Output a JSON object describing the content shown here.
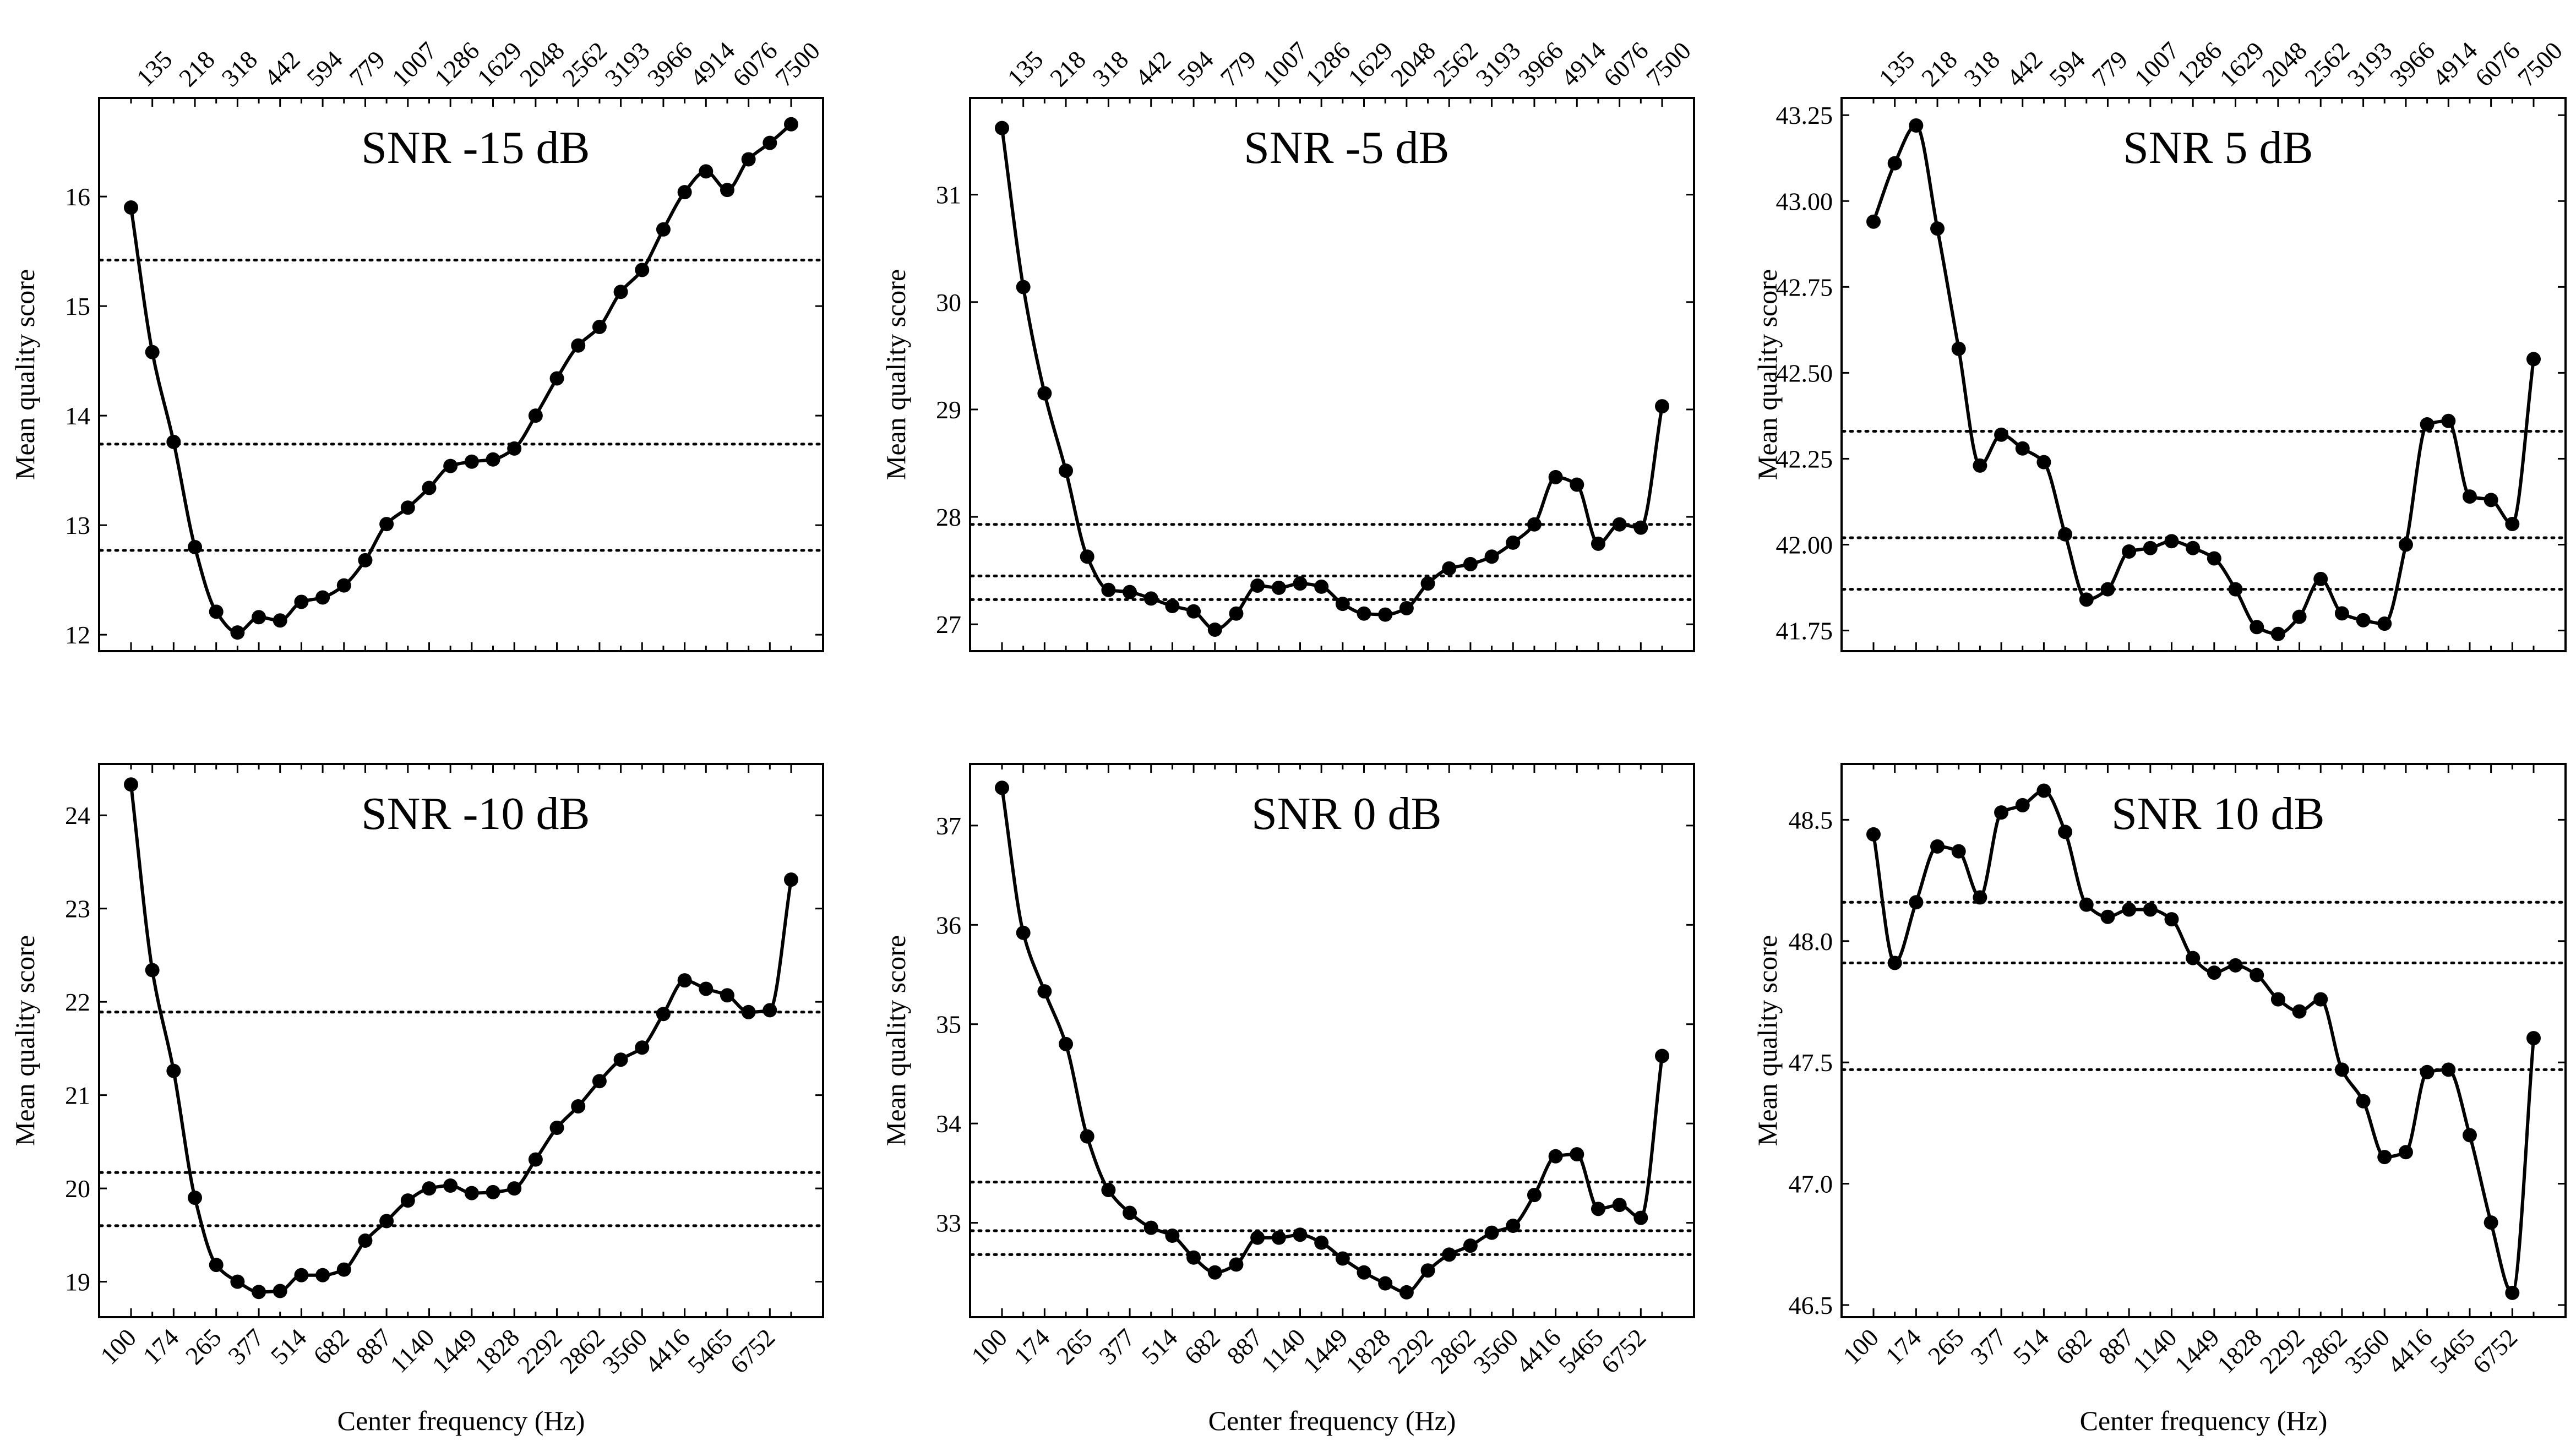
{
  "chart_data": [
    {
      "type": "line",
      "title": "SNR -15 dB",
      "xlabel": "",
      "ylabel": "Mean quality score",
      "ylim": [
        11.85,
        16.9
      ],
      "yticks": [
        "12",
        "13",
        "14",
        "15",
        "16"
      ],
      "bottom_ticks": [],
      "top_ticks": [
        "135",
        "218",
        "318",
        "442",
        "594",
        "779",
        "1007",
        "1286",
        "1629",
        "2048",
        "2562",
        "3193",
        "3966",
        "4914",
        "6076",
        "7500"
      ],
      "reference_lines": [
        15.42,
        13.74,
        12.77
      ],
      "values": [
        15.9,
        14.58,
        13.76,
        12.8,
        12.21,
        12.02,
        12.16,
        12.13,
        12.3,
        12.34,
        12.45,
        12.68,
        13.01,
        13.16,
        13.34,
        13.54,
        13.58,
        13.6,
        13.7,
        14.0,
        14.34,
        14.64,
        14.81,
        15.13,
        15.33,
        15.7,
        16.04,
        16.23,
        16.06,
        16.34,
        16.49,
        16.66
      ]
    },
    {
      "type": "line",
      "title": "SNR -5 dB",
      "xlabel": "",
      "ylabel": "Mean quality score",
      "ylim": [
        26.75,
        31.9
      ],
      "yticks": [
        "27",
        "28",
        "29",
        "30",
        "31"
      ],
      "bottom_ticks": [],
      "top_ticks": [
        "135",
        "218",
        "318",
        "442",
        "594",
        "779",
        "1007",
        "1286",
        "1629",
        "2048",
        "2562",
        "3193",
        "3966",
        "4914",
        "6076",
        "7500"
      ],
      "reference_lines": [
        27.93,
        27.45,
        27.23
      ],
      "values": [
        31.62,
        30.14,
        29.15,
        28.43,
        27.63,
        27.32,
        27.3,
        27.24,
        27.17,
        27.12,
        26.95,
        27.1,
        27.36,
        27.34,
        27.38,
        27.35,
        27.19,
        27.1,
        27.09,
        27.15,
        27.38,
        27.52,
        27.56,
        27.63,
        27.76,
        27.93,
        28.37,
        28.3,
        27.75,
        27.93,
        27.9,
        29.03
      ]
    },
    {
      "type": "line",
      "title": "SNR 5 dB",
      "xlabel": "",
      "ylabel": "Mean quality score",
      "ylim": [
        41.69,
        43.3
      ],
      "yticks": [
        "41.75",
        "42.00",
        "42.25",
        "42.50",
        "42.75",
        "43.00",
        "43.25"
      ],
      "bottom_ticks": [],
      "top_ticks": [
        "135",
        "218",
        "318",
        "442",
        "594",
        "779",
        "1007",
        "1286",
        "1629",
        "2048",
        "2562",
        "3193",
        "3966",
        "4914",
        "6076",
        "7500"
      ],
      "reference_lines": [
        42.33,
        42.02,
        41.87
      ],
      "values": [
        42.94,
        43.11,
        43.22,
        42.92,
        42.57,
        42.23,
        42.32,
        42.28,
        42.24,
        42.03,
        41.84,
        41.87,
        41.98,
        41.99,
        42.01,
        41.99,
        41.96,
        41.87,
        41.76,
        41.74,
        41.79,
        41.9,
        41.8,
        41.78,
        41.77,
        42.0,
        42.35,
        42.36,
        42.14,
        42.13,
        42.06,
        42.54
      ]
    },
    {
      "type": "line",
      "title": "SNR -10 dB",
      "xlabel": "Center frequency (Hz)",
      "ylabel": "Mean quality score",
      "ylim": [
        18.62,
        24.55
      ],
      "yticks": [
        "19",
        "20",
        "21",
        "22",
        "23",
        "24"
      ],
      "bottom_ticks": [
        "100",
        "174",
        "265",
        "377",
        "514",
        "682",
        "887",
        "1140",
        "1449",
        "1828",
        "2292",
        "2862",
        "3560",
        "4416",
        "5465",
        "6752"
      ],
      "top_ticks": [],
      "reference_lines": [
        21.89,
        20.17,
        19.6
      ],
      "values": [
        24.33,
        22.34,
        21.26,
        19.9,
        19.18,
        19.0,
        18.89,
        18.9,
        19.07,
        19.07,
        19.13,
        19.44,
        19.65,
        19.87,
        20.0,
        20.03,
        19.95,
        19.96,
        20.0,
        20.31,
        20.65,
        20.88,
        21.15,
        21.38,
        21.51,
        21.87,
        22.23,
        22.14,
        22.07,
        21.89,
        21.91,
        23.31
      ]
    },
    {
      "type": "line",
      "title": "SNR 0 dB",
      "xlabel": "Center frequency (Hz)",
      "ylabel": "Mean quality score",
      "ylim": [
        32.05,
        37.62
      ],
      "yticks": [
        "33",
        "34",
        "35",
        "36",
        "37"
      ],
      "bottom_ticks": [
        "100",
        "174",
        "265",
        "377",
        "514",
        "682",
        "887",
        "1140",
        "1449",
        "1828",
        "2292",
        "2862",
        "3560",
        "4416",
        "5465",
        "6752"
      ],
      "top_ticks": [],
      "reference_lines": [
        33.41,
        32.92,
        32.68
      ],
      "values": [
        37.38,
        35.92,
        35.33,
        34.8,
        33.87,
        33.33,
        33.1,
        32.95,
        32.87,
        32.65,
        32.5,
        32.58,
        32.85,
        32.85,
        32.88,
        32.8,
        32.64,
        32.5,
        32.39,
        32.3,
        32.52,
        32.68,
        32.77,
        32.9,
        32.97,
        33.28,
        33.67,
        33.69,
        33.14,
        33.18,
        33.05,
        34.68
      ]
    },
    {
      "type": "line",
      "title": "SNR 10 dB",
      "xlabel": "Center frequency (Hz)",
      "ylabel": "Mean quality score",
      "ylim": [
        46.45,
        48.73
      ],
      "yticks": [
        "46.5",
        "47.0",
        "47.5",
        "48.0",
        "48.5"
      ],
      "bottom_ticks": [
        "100",
        "174",
        "265",
        "377",
        "514",
        "682",
        "887",
        "1140",
        "1449",
        "1828",
        "2292",
        "2862",
        "3560",
        "4416",
        "5465",
        "6752"
      ],
      "top_ticks": [],
      "reference_lines": [
        48.16,
        47.91,
        47.47
      ],
      "values": [
        48.44,
        47.91,
        48.16,
        48.39,
        48.37,
        48.18,
        48.53,
        48.56,
        48.62,
        48.45,
        48.15,
        48.1,
        48.13,
        48.13,
        48.09,
        47.93,
        47.87,
        47.9,
        47.86,
        47.76,
        47.71,
        47.76,
        47.47,
        47.34,
        47.11,
        47.13,
        47.46,
        47.47,
        47.2,
        46.84,
        46.55,
        47.6
      ]
    }
  ]
}
